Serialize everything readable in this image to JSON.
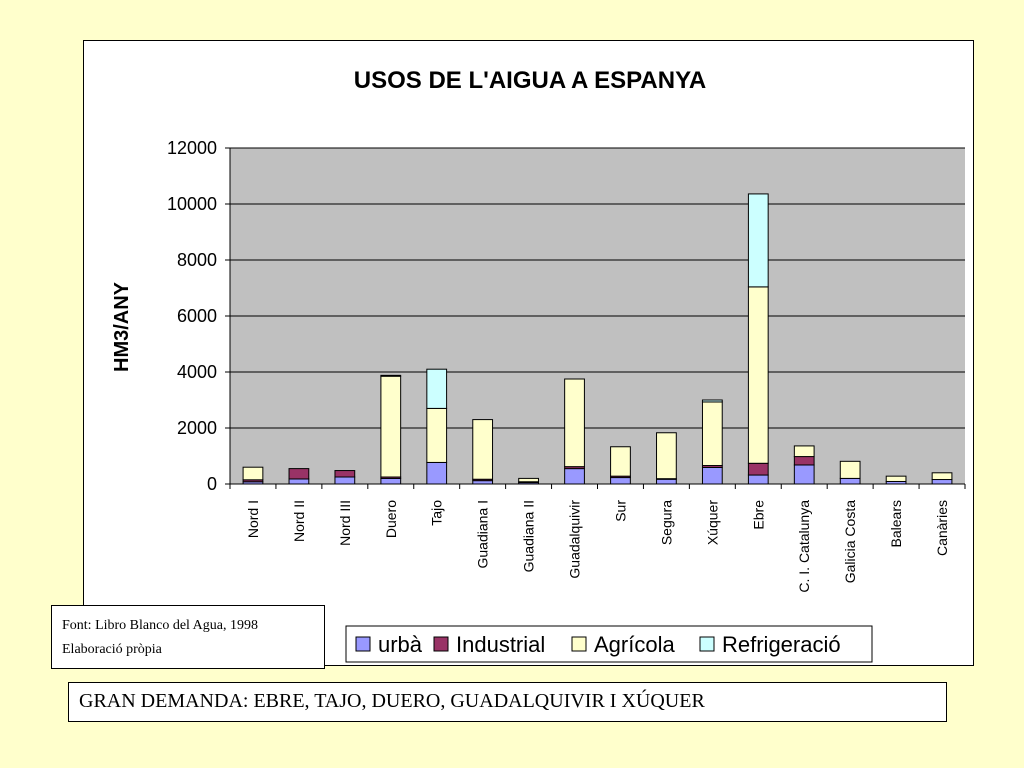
{
  "chart_data": {
    "type": "bar",
    "stacked": true,
    "title": "USOS DE L'AIGUA A ESPANYA",
    "xlabel": "",
    "ylabel": "HM3/ANY",
    "ylim": [
      0,
      12000
    ],
    "yticks": [
      0,
      2000,
      4000,
      6000,
      8000,
      10000,
      12000
    ],
    "grid": true,
    "legend_position": "bottom",
    "categories": [
      "Nord I",
      "Nord II",
      "Nord III",
      "Duero",
      "Tajo",
      "Guadiana I",
      "Guadiana II",
      "Guadalquivir",
      "Sur",
      "Segura",
      "Xúquer",
      "Ebre",
      "C. I. Catalunya",
      "Galicia Costa",
      "Balears",
      "Canàries"
    ],
    "series": [
      {
        "name": "urbà",
        "color": "#9999ff",
        "values": [
          80,
          180,
          250,
          200,
          770,
          120,
          50,
          550,
          230,
          170,
          590,
          320,
          680,
          200,
          90,
          160
        ]
      },
      {
        "name": "Industrial",
        "color": "#993366",
        "values": [
          70,
          370,
          230,
          50,
          0,
          50,
          30,
          70,
          50,
          20,
          70,
          420,
          300,
          0,
          0,
          0
        ]
      },
      {
        "name": "Agrícola",
        "color": "#ffffcc",
        "values": [
          450,
          0,
          0,
          3600,
          1930,
          2130,
          120,
          3130,
          1050,
          1640,
          2270,
          6300,
          380,
          610,
          190,
          240
        ]
      },
      {
        "name": "Refrigeració",
        "color": "#ccffff",
        "values": [
          0,
          0,
          0,
          30,
          1400,
          0,
          0,
          0,
          0,
          0,
          70,
          3320,
          0,
          0,
          0,
          0
        ]
      }
    ]
  },
  "source": {
    "line1": "Font: Libro Blanco del Agua, 1998",
    "line2": "Elaboració pròpia"
  },
  "banner": {
    "text": "GRAN DEMANDA: EBRE, TAJO, DUERO, GUADALQUIVIR I XÚQUER"
  },
  "colors": {
    "background": "#ffffcc",
    "plot_area": "#c0c0c0"
  }
}
